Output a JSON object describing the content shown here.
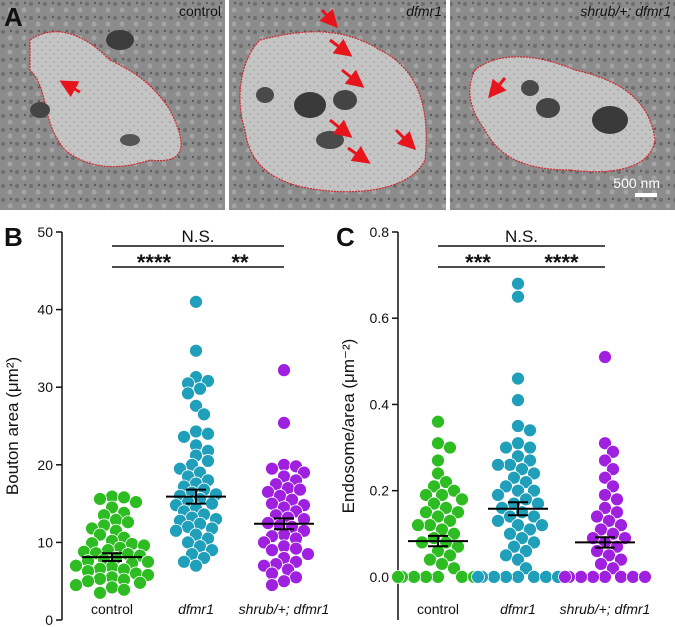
{
  "panel_a": {
    "panel_label": "A",
    "images": [
      {
        "label": "control"
      },
      {
        "label": "dfmr1"
      },
      {
        "label": "shrub/+; dfmr1"
      }
    ],
    "scale_bar": "500 nm"
  },
  "chart_data": [
    {
      "type": "strip",
      "panel_label": "B",
      "y_label": "Bouton area (μm²)",
      "categories": [
        "control",
        "dfmr1",
        "shrub/+; dfmr1"
      ],
      "ylim": [
        0,
        50
      ],
      "yticks": [
        0,
        10,
        20,
        30,
        40,
        50
      ],
      "groups": [
        {
          "color": "#2dbd22",
          "mean": 8.1,
          "sem": 0.5,
          "values": [
            15.9,
            15.6,
            15.8,
            15.2,
            14.5,
            13.8,
            13.5,
            12.9,
            12.6,
            12.2,
            11.8,
            11.5,
            11.0,
            10.6,
            10.2,
            9.9,
            9.6,
            9.3,
            9.0,
            8.8,
            8.5,
            8.3,
            8.0,
            7.8,
            7.5,
            7.3,
            7.0,
            6.8,
            6.5,
            6.3,
            6.0,
            5.8,
            5.5,
            5.3,
            5.0,
            4.8,
            4.5,
            4.2,
            3.9,
            3.5,
            7.6,
            8.6,
            9.8,
            6.6,
            5.2
          ]
        },
        {
          "color": "#1f9fba",
          "mean": 15.9,
          "sem": 0.9,
          "values": [
            41.0,
            34.7,
            31.3,
            30.8,
            30.5,
            29.8,
            29.2,
            27.6,
            26.5,
            24.3,
            24.0,
            23.6,
            22.5,
            21.8,
            21.2,
            20.5,
            20.0,
            19.5,
            19.0,
            18.5,
            18.0,
            17.6,
            17.2,
            16.8,
            16.4,
            16.0,
            15.6,
            15.2,
            14.8,
            14.4,
            14.0,
            13.6,
            13.2,
            12.8,
            12.4,
            12.0,
            11.5,
            11.0,
            10.5,
            10.0,
            9.5,
            9.0,
            8.5,
            8.0,
            7.5,
            7.0,
            16.2,
            15.0,
            13.0,
            11.8
          ]
        },
        {
          "color": "#a020e0",
          "mean": 12.4,
          "sem": 0.7,
          "values": [
            32.2,
            25.4,
            20.0,
            19.8,
            19.5,
            19.0,
            18.5,
            18.0,
            17.5,
            17.0,
            16.5,
            16.0,
            15.5,
            15.0,
            14.5,
            14.0,
            13.5,
            13.0,
            12.5,
            12.0,
            11.5,
            11.0,
            10.5,
            10.0,
            9.5,
            9.0,
            8.5,
            8.0,
            7.5,
            7.0,
            6.5,
            6.0,
            5.5,
            5.0,
            4.5,
            13.2,
            12.2,
            10.8,
            9.2,
            7.2,
            14.8,
            16.8
          ]
        }
      ],
      "comparisons": [
        {
          "from": 0,
          "to": 2,
          "label": "N.S."
        },
        {
          "from": 0,
          "to": 1,
          "label": "****"
        },
        {
          "from": 1,
          "to": 2,
          "label": "**"
        }
      ]
    },
    {
      "type": "strip",
      "panel_label": "C",
      "y_label": "Endosome/area (μm⁻²)",
      "categories": [
        "control",
        "dfmr1",
        "shrub/+; dfmr1"
      ],
      "ylim": [
        -0.1,
        0.8
      ],
      "yticks": [
        {
          "value": 0,
          "label": "0.0"
        },
        0.2,
        0.4,
        0.6,
        0.8
      ],
      "groups": [
        {
          "color": "#2dbd22",
          "mean": 0.083,
          "sem": 0.012,
          "values": [
            0.36,
            0.31,
            0.3,
            0.27,
            0.24,
            0.22,
            0.21,
            0.2,
            0.19,
            0.18,
            0.17,
            0.16,
            0.15,
            0.14,
            0.13,
            0.12,
            0.11,
            0.1,
            0.09,
            0.08,
            0.07,
            0.06,
            0.05,
            0.04,
            0.03,
            0.02,
            0,
            0,
            0,
            0,
            0,
            0,
            0,
            0,
            0,
            0,
            0.15,
            0.19,
            0.12,
            0.08
          ]
        },
        {
          "color": "#1f9fba",
          "mean": 0.158,
          "sem": 0.015,
          "values": [
            0.68,
            0.65,
            0.46,
            0.41,
            0.35,
            0.34,
            0.31,
            0.3,
            0.28,
            0.27,
            0.26,
            0.25,
            0.24,
            0.23,
            0.22,
            0.21,
            0.2,
            0.19,
            0.18,
            0.17,
            0.16,
            0.15,
            0.14,
            0.13,
            0.12,
            0.11,
            0.1,
            0.09,
            0.08,
            0.07,
            0.06,
            0.05,
            0.04,
            0.02,
            0,
            0,
            0,
            0,
            0,
            0,
            0,
            0,
            0.2,
            0.17,
            0.14,
            0.12,
            0.26,
            0.3
          ]
        },
        {
          "color": "#a020e0",
          "mean": 0.08,
          "sem": 0.012,
          "values": [
            0.51,
            0.31,
            0.29,
            0.27,
            0.25,
            0.23,
            0.21,
            0.19,
            0.18,
            0.16,
            0.15,
            0.13,
            0.12,
            0.1,
            0.09,
            0.08,
            0.07,
            0.06,
            0.05,
            0.04,
            0.03,
            0.02,
            0,
            0,
            0,
            0,
            0,
            0,
            0,
            0,
            0,
            0,
            0,
            0,
            0,
            0.11,
            0.14,
            0.09
          ]
        }
      ],
      "comparisons": [
        {
          "from": 0,
          "to": 2,
          "label": "N.S."
        },
        {
          "from": 0,
          "to": 1,
          "label": "***"
        },
        {
          "from": 1,
          "to": 2,
          "label": "****"
        }
      ]
    }
  ]
}
